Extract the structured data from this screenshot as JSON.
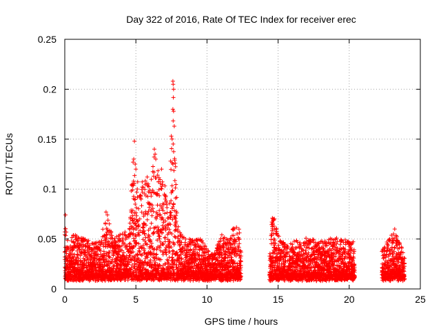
{
  "chart_data": {
    "type": "scatter",
    "title": "Day 322 of 2016, Rate Of TEC Index for receiver erec",
    "xlabel": "GPS time / hours",
    "ylabel": "ROTI / TECUs",
    "xlim": [
      0,
      25
    ],
    "ylim": [
      0,
      0.25
    ],
    "x_ticks": [
      "0",
      "5",
      "10",
      "15",
      "20",
      "25"
    ],
    "y_ticks": [
      "0",
      "0.05",
      "0.1",
      "0.15",
      "0.2",
      "0.25"
    ],
    "grid": true,
    "marker": "+",
    "color": "#ff0000",
    "data_segments": [
      {
        "start": 0.0,
        "end": 12.4
      },
      {
        "start": 14.4,
        "end": 20.4
      },
      {
        "start": 22.3,
        "end": 23.9
      }
    ],
    "envelope": [
      [
        0.0,
        0.074
      ],
      [
        0.3,
        0.04
      ],
      [
        0.5,
        0.056
      ],
      [
        1.0,
        0.052
      ],
      [
        1.5,
        0.05
      ],
      [
        2.0,
        0.046
      ],
      [
        2.5,
        0.048
      ],
      [
        2.9,
        0.077
      ],
      [
        3.5,
        0.05
      ],
      [
        4.0,
        0.058
      ],
      [
        4.5,
        0.06
      ],
      [
        4.8,
        0.13
      ],
      [
        4.9,
        0.148
      ],
      [
        5.2,
        0.095
      ],
      [
        5.5,
        0.11
      ],
      [
        6.0,
        0.105
      ],
      [
        6.3,
        0.14
      ],
      [
        6.6,
        0.12
      ],
      [
        7.0,
        0.11
      ],
      [
        7.3,
        0.07
      ],
      [
        7.6,
        0.208
      ],
      [
        8.0,
        0.06
      ],
      [
        8.5,
        0.05
      ],
      [
        9.0,
        0.05
      ],
      [
        9.5,
        0.052
      ],
      [
        10.0,
        0.04
      ],
      [
        10.5,
        0.035
      ],
      [
        11.0,
        0.055
      ],
      [
        11.5,
        0.05
      ],
      [
        12.0,
        0.066
      ],
      [
        12.3,
        0.06
      ],
      [
        14.5,
        0.072
      ],
      [
        14.8,
        0.07
      ],
      [
        15.2,
        0.05
      ],
      [
        15.6,
        0.045
      ],
      [
        16.0,
        0.05
      ],
      [
        16.5,
        0.048
      ],
      [
        17.0,
        0.052
      ],
      [
        17.5,
        0.05
      ],
      [
        18.0,
        0.048
      ],
      [
        18.5,
        0.05
      ],
      [
        19.0,
        0.052
      ],
      [
        19.5,
        0.05
      ],
      [
        20.0,
        0.048
      ],
      [
        20.3,
        0.05
      ],
      [
        22.4,
        0.042
      ],
      [
        22.8,
        0.05
      ],
      [
        23.2,
        0.06
      ],
      [
        23.6,
        0.045
      ],
      [
        23.9,
        0.035
      ]
    ],
    "spikes": [
      [
        0.05,
        0.074
      ],
      [
        0.1,
        0.057
      ],
      [
        2.9,
        0.077
      ],
      [
        3.0,
        0.074
      ],
      [
        4.8,
        0.127
      ],
      [
        4.85,
        0.13
      ],
      [
        4.9,
        0.148
      ],
      [
        4.95,
        0.125
      ],
      [
        5.0,
        0.12
      ],
      [
        5.8,
        0.112
      ],
      [
        6.3,
        0.14
      ],
      [
        6.35,
        0.135
      ],
      [
        6.4,
        0.13
      ],
      [
        6.8,
        0.12
      ],
      [
        7.6,
        0.208
      ],
      [
        7.62,
        0.205
      ],
      [
        7.65,
        0.2
      ],
      [
        7.6,
        0.18
      ],
      [
        7.65,
        0.178
      ],
      [
        7.7,
        0.163
      ],
      [
        7.6,
        0.125
      ],
      [
        14.6,
        0.071
      ],
      [
        14.7,
        0.069
      ],
      [
        23.2,
        0.06
      ]
    ]
  }
}
